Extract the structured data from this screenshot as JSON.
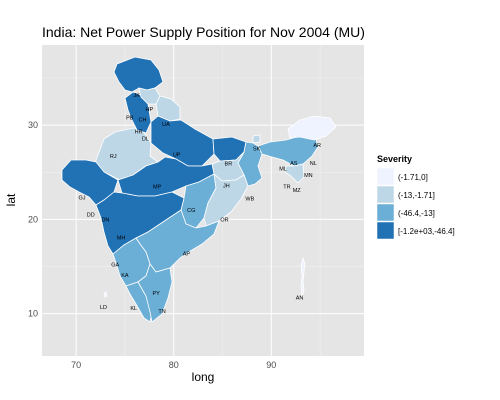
{
  "title": "India: Net Power Supply Position for Nov 2004 (MU)",
  "colors": {
    "panel": "#e5e5e5",
    "grid_major": "#ffffff",
    "grid_minor": "#f2f2f2",
    "class1": "#eff3ff",
    "class2": "#bdd7e7",
    "class3": "#6baed6",
    "class4": "#2171b5"
  },
  "axes": {
    "xlabel": "long",
    "ylabel": "lat",
    "xlim": [
      66.5,
      99.5
    ],
    "ylim": [
      5.5,
      38.5
    ],
    "xticks": [
      "70",
      "80",
      "90"
    ],
    "yticks": [
      "10",
      "20",
      "30"
    ]
  },
  "legend": {
    "title": "Severity",
    "position": "right",
    "items": [
      {
        "label": "(-1.71,0]",
        "color": "#eff3ff"
      },
      {
        "label": "(-13,-1.71]",
        "color": "#bdd7e7"
      },
      {
        "label": "(-46.4,-13]",
        "color": "#6baed6"
      },
      {
        "label": "[-1.2e+03,-46.4]",
        "color": "#2171b5"
      }
    ]
  },
  "chart_data": {
    "type": "choropleth",
    "title": "India: Net Power Supply Position for Nov 2004 (MU)",
    "xlabel": "long",
    "ylabel": "lat",
    "legend_title": "Severity",
    "states": [
      {
        "code": "JK",
        "class": 4,
        "lon": 76.2,
        "lat": 33.2
      },
      {
        "code": "HP",
        "class": 2,
        "lon": 77.5,
        "lat": 31.7
      },
      {
        "code": "PB",
        "class": 4,
        "lon": 75.5,
        "lat": 30.8
      },
      {
        "code": "CH",
        "class": 4,
        "lon": 76.8,
        "lat": 30.6
      },
      {
        "code": "UA",
        "class": 2,
        "lon": 79.2,
        "lat": 30.1
      },
      {
        "code": "HR",
        "class": 4,
        "lon": 76.4,
        "lat": 29.3
      },
      {
        "code": "DL",
        "class": 4,
        "lon": 77.1,
        "lat": 28.6
      },
      {
        "code": "RJ",
        "class": 2,
        "lon": 73.8,
        "lat": 26.7
      },
      {
        "code": "UP",
        "class": 4,
        "lon": 80.3,
        "lat": 26.9
      },
      {
        "code": "BR",
        "class": 4,
        "lon": 85.6,
        "lat": 25.9
      },
      {
        "code": "SK",
        "class": 2,
        "lon": 88.5,
        "lat": 27.5
      },
      {
        "code": "AR",
        "class": 2,
        "lon": 94.7,
        "lat": 27.9
      },
      {
        "code": "AS",
        "class": 3,
        "lon": 92.3,
        "lat": 26.0
      },
      {
        "code": "NL",
        "class": 3,
        "lon": 94.3,
        "lat": 26.0
      },
      {
        "code": "ML",
        "class": 3,
        "lon": 91.2,
        "lat": 25.4
      },
      {
        "code": "MN",
        "class": 3,
        "lon": 93.8,
        "lat": 24.7
      },
      {
        "code": "TR",
        "class": 2,
        "lon": 91.6,
        "lat": 23.5
      },
      {
        "code": "MZ",
        "class": 2,
        "lon": 92.6,
        "lat": 23.1
      },
      {
        "code": "JH",
        "class": 2,
        "lon": 85.4,
        "lat": 23.6
      },
      {
        "code": "WB",
        "class": 3,
        "lon": 87.8,
        "lat": 22.2
      },
      {
        "code": "GJ",
        "class": 4,
        "lon": 70.6,
        "lat": 22.3
      },
      {
        "code": "MP",
        "class": 4,
        "lon": 78.3,
        "lat": 23.5
      },
      {
        "code": "CG",
        "class": 3,
        "lon": 81.8,
        "lat": 21.0
      },
      {
        "code": "OR",
        "class": 2,
        "lon": 85.2,
        "lat": 20.0
      },
      {
        "code": "DD",
        "class": 4,
        "lon": 71.5,
        "lat": 20.5
      },
      {
        "code": "DN",
        "class": 4,
        "lon": 73.0,
        "lat": 20.0
      },
      {
        "code": "MH",
        "class": 4,
        "lon": 74.6,
        "lat": 18.1
      },
      {
        "code": "AP",
        "class": 3,
        "lon": 81.3,
        "lat": 16.4
      },
      {
        "code": "GA",
        "class": 3,
        "lon": 74.0,
        "lat": 15.2
      },
      {
        "code": "KA",
        "class": 3,
        "lon": 75.0,
        "lat": 14.1
      },
      {
        "code": "PY",
        "class": 3,
        "lon": 78.2,
        "lat": 12.2
      },
      {
        "code": "KL",
        "class": 3,
        "lon": 75.9,
        "lat": 10.6
      },
      {
        "code": "TN",
        "class": 3,
        "lon": 78.8,
        "lat": 10.3
      },
      {
        "code": "LD",
        "class": 1,
        "lon": 72.8,
        "lat": 10.7
      },
      {
        "code": "AN",
        "class": 1,
        "lon": 92.9,
        "lat": 11.7
      }
    ]
  }
}
